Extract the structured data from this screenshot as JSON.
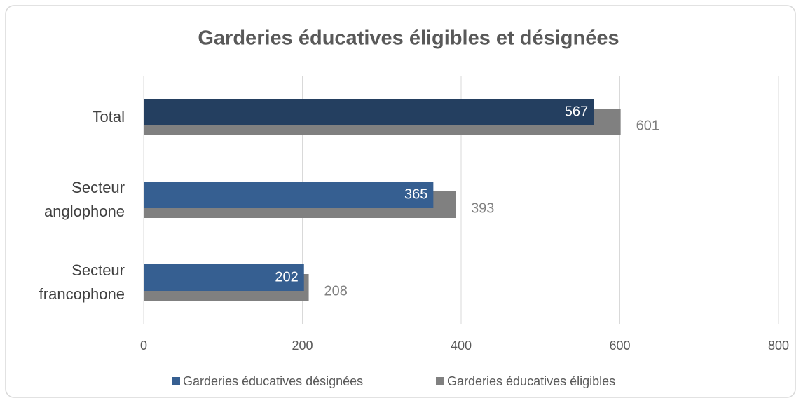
{
  "chart_data": {
    "type": "barh",
    "title": "Garderies éducatives éligibles et désignées",
    "categories": [
      "Total",
      "Secteur anglophone",
      "Secteur francophone"
    ],
    "series": [
      {
        "name": "Garderies éducatives désignées",
        "color": "#365f91",
        "colors": [
          "#243f60",
          "#365f91",
          "#365f91"
        ],
        "values": [
          567,
          365,
          202
        ]
      },
      {
        "name": "Garderies éducatives éligibles",
        "color": "#808080",
        "values": [
          601,
          393,
          208
        ]
      }
    ],
    "xlim": [
      0,
      800
    ],
    "xticks": [
      0,
      200,
      400,
      600,
      800
    ],
    "grid": true,
    "legend": "bottom"
  }
}
